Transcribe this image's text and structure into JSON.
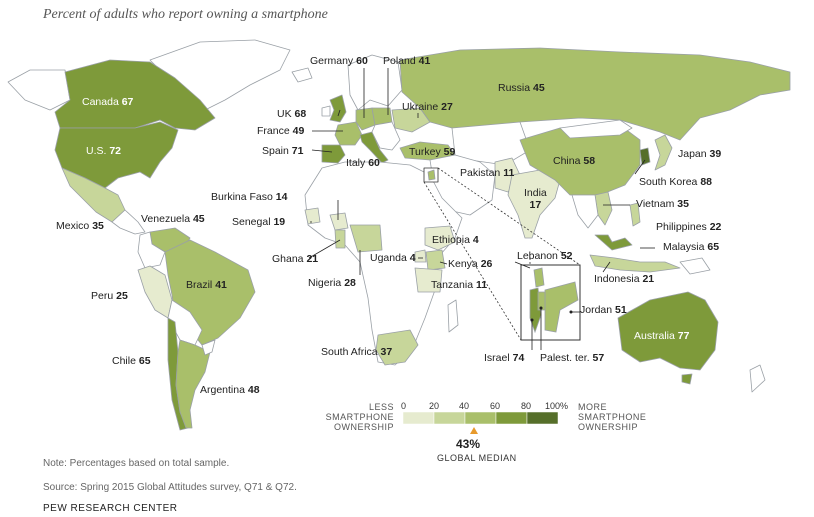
{
  "subtitle": "Percent of adults who report owning a smartphone",
  "colors": {
    "land_nodata": "#ffffff",
    "border": "#9aa0a6",
    "bin_0_20": "#e6ebcf",
    "bin_20_40": "#c7d69a",
    "bin_40_60": "#a9bf6a",
    "bin_60_80": "#7e9a3a",
    "bin_80_100": "#566f2a",
    "median_marker": "#e79a2c"
  },
  "countries": [
    {
      "name": "Canada",
      "value": "67"
    },
    {
      "name": "U.S.",
      "value": "72"
    },
    {
      "name": "Mexico",
      "value": "35"
    },
    {
      "name": "Venezuela",
      "value": "45"
    },
    {
      "name": "Peru",
      "value": "25"
    },
    {
      "name": "Brazil",
      "value": "41"
    },
    {
      "name": "Chile",
      "value": "65"
    },
    {
      "name": "Argentina",
      "value": "48"
    },
    {
      "name": "Germany",
      "value": "60"
    },
    {
      "name": "Poland",
      "value": "41"
    },
    {
      "name": "UK",
      "value": "68"
    },
    {
      "name": "France",
      "value": "49"
    },
    {
      "name": "Spain",
      "value": "71"
    },
    {
      "name": "Italy",
      "value": "60"
    },
    {
      "name": "Ukraine",
      "value": "27"
    },
    {
      "name": "Russia",
      "value": "45"
    },
    {
      "name": "Turkey",
      "value": "59"
    },
    {
      "name": "Burkina Faso",
      "value": "14"
    },
    {
      "name": "Senegal",
      "value": "19"
    },
    {
      "name": "Ghana",
      "value": "21"
    },
    {
      "name": "Nigeria",
      "value": "28"
    },
    {
      "name": "Uganda",
      "value": "4"
    },
    {
      "name": "Ethiopia",
      "value": "4"
    },
    {
      "name": "Kenya",
      "value": "26"
    },
    {
      "name": "Tanzania",
      "value": "11"
    },
    {
      "name": "South Africa",
      "value": "37"
    },
    {
      "name": "Pakistan",
      "value": "11"
    },
    {
      "name": "India",
      "value": "17"
    },
    {
      "name": "China",
      "value": "58"
    },
    {
      "name": "Japan",
      "value": "39"
    },
    {
      "name": "South Korea",
      "value": "88"
    },
    {
      "name": "Vietnam",
      "value": "35"
    },
    {
      "name": "Philippines",
      "value": "22"
    },
    {
      "name": "Malaysia",
      "value": "65"
    },
    {
      "name": "Indonesia",
      "value": "21"
    },
    {
      "name": "Australia",
      "value": "77"
    },
    {
      "name": "Lebanon",
      "value": "52"
    },
    {
      "name": "Jordan",
      "value": "51"
    },
    {
      "name": "Israel",
      "value": "74"
    },
    {
      "name": "Palest. ter.",
      "value": "57"
    }
  ],
  "legend": {
    "left_line1": "LESS",
    "left_line2": "SMARTPHONE",
    "left_line3": "OWNERSHIP",
    "right_line1": "MORE",
    "right_line2": "SMARTPHONE",
    "right_line3": "OWNERSHIP",
    "ticks": [
      "0",
      "20",
      "40",
      "60",
      "80",
      "100%"
    ],
    "median_value": "43%",
    "median_label": "GLOBAL MEDIAN",
    "median_fraction": 0.43
  },
  "note": "Note: Percentages based on total sample.",
  "source": "Source: Spring 2015 Global Attitudes survey, Q71 & Q72.",
  "brand": "PEW RESEARCH CENTER"
}
